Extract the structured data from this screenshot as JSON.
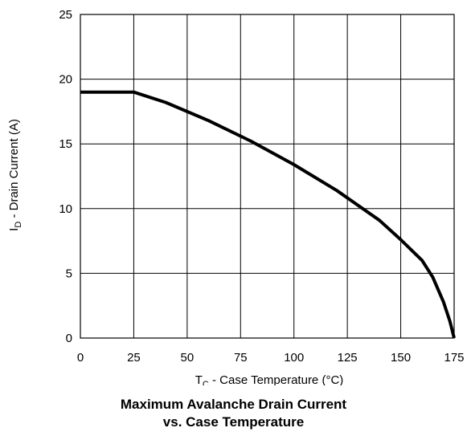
{
  "chart_data": {
    "type": "line",
    "title_line1": "Maximum Avalanche Drain Current",
    "title_line2": "vs. Case Temperature",
    "xlabel": {
      "prefix": "T",
      "subscript": "C",
      "suffix": " -  Case Temperature (°C)"
    },
    "ylabel": {
      "prefix": "I",
      "subscript": "D",
      "suffix": " -  Drain Current (A)"
    },
    "xlim": [
      0,
      175
    ],
    "ylim": [
      0,
      25
    ],
    "xticks": [
      0,
      25,
      50,
      75,
      100,
      125,
      150,
      175
    ],
    "yticks": [
      0,
      5,
      10,
      15,
      20,
      25
    ],
    "grid": true,
    "series": [
      {
        "x": [
          0,
          25,
          40,
          60,
          80,
          100,
          120,
          140,
          150,
          160,
          165,
          170,
          173,
          175
        ],
        "y": [
          19,
          19,
          18.2,
          16.8,
          15.2,
          13.4,
          11.4,
          9.1,
          7.6,
          6.0,
          4.7,
          2.8,
          1.3,
          0
        ]
      }
    ]
  }
}
